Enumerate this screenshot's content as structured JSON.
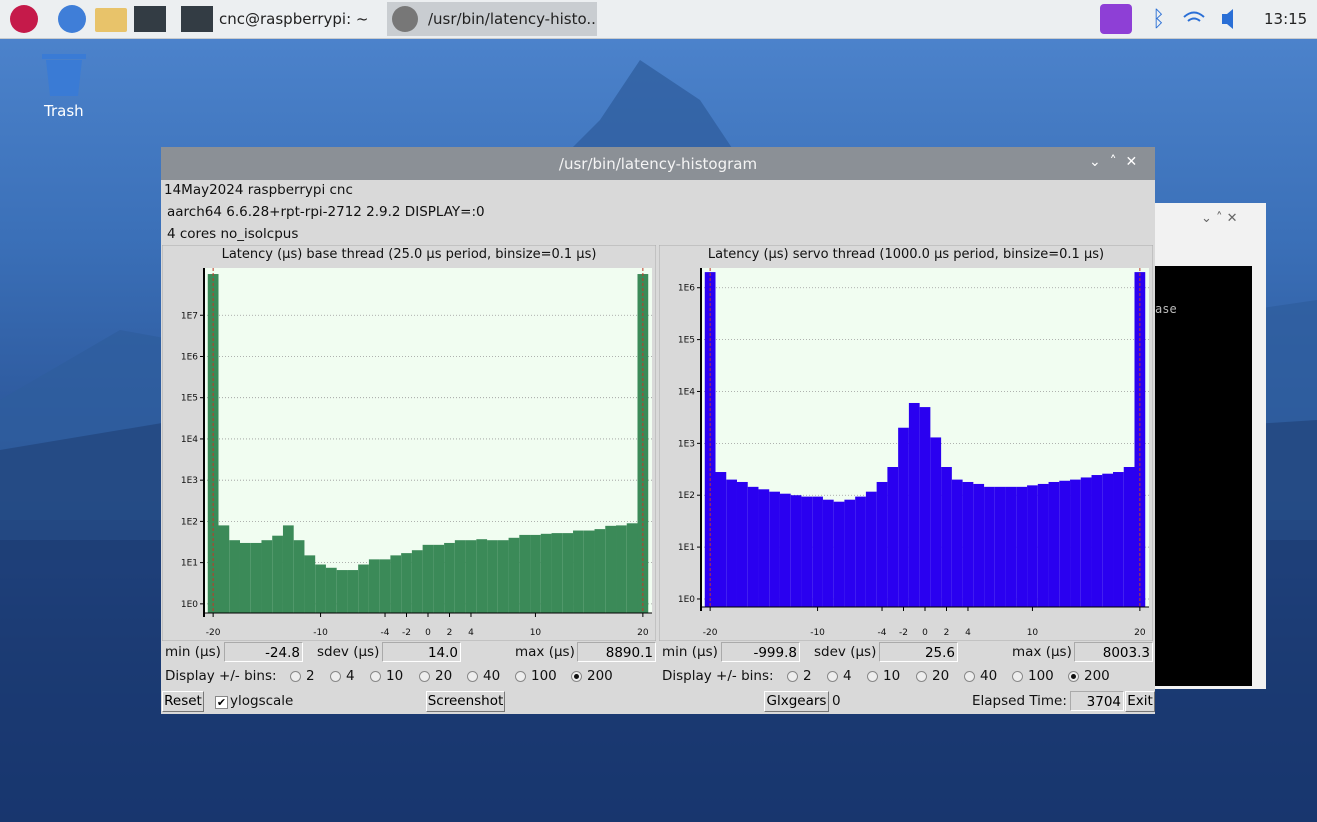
{
  "taskbar": {
    "apps": [
      {
        "label": "cnc@raspberrypi: ~"
      },
      {
        "label": "/usr/bin/latency-histo.."
      }
    ],
    "clock": "13:15"
  },
  "desktop": {
    "icons": [
      {
        "label": "Trash"
      }
    ]
  },
  "background_window": {
    "text": "ase"
  },
  "window": {
    "title": "/usr/bin/latency-histogram",
    "info": [
      "14May2024 raspberrypi cnc",
      "aarch64  6.6.28+rpt-rpi-2712  2.9.2  DISPLAY=:0",
      "4 cores  no_isolcpus"
    ],
    "panels": [
      {
        "min_label": "min (µs)",
        "min": "-24.8",
        "sdev_label": "sdev (µs)",
        "sdev": "14.0",
        "max_label": "max (µs)",
        "max": "8890.1",
        "bins_label": "Display +/- bins:",
        "bin_options": [
          "2",
          "4",
          "10",
          "20",
          "40",
          "100",
          "200"
        ],
        "selected_bin_index": 6
      },
      {
        "min_label": "min (µs)",
        "min": "-999.8",
        "sdev_label": "sdev (µs)",
        "sdev": "25.6",
        "max_label": "max (µs)",
        "max": "8003.3",
        "bins_label": "Display +/- bins:",
        "bin_options": [
          "2",
          "4",
          "10",
          "20",
          "40",
          "100",
          "200"
        ],
        "selected_bin_index": 6
      }
    ],
    "controls": {
      "reset": "Reset",
      "ylogscale": "ylogscale",
      "ylogscale_checked": true,
      "screenshot": "Screenshot",
      "glxgears": "Glxgears",
      "glxgears_count": "0",
      "elapsed_label": "Elapsed Time:",
      "elapsed": "3704",
      "exit": "Exit"
    }
  },
  "chart_data": [
    {
      "type": "histogram",
      "title": "Latency (µs) base thread (25.0 µs period, binsize=0.1 µs)",
      "color": "#3b8a58",
      "bins": [
        -20.5,
        -19.5,
        -18.5,
        -17.5,
        -16.5,
        -15.5,
        -14.5,
        -13.5,
        -12.5,
        -11.5,
        -10.5,
        -9.5,
        -8.5,
        -7.5,
        -6.5,
        -5.5,
        -4.5,
        -3.5,
        -2.5,
        -1.5,
        -0.5,
        0.5,
        1.5,
        2.5,
        3.5,
        4.5,
        5.5,
        6.5,
        7.5,
        8.5,
        9.5,
        10.5,
        11.5,
        12.5,
        13.5,
        14.5,
        15.5,
        16.5,
        17.5,
        18.5,
        19.5,
        20.5
      ],
      "values": [
        100000000,
        80,
        35,
        30,
        30,
        35,
        45,
        80,
        35,
        15,
        9,
        7.5,
        6.6,
        6.6,
        9,
        12,
        12,
        15,
        17,
        20,
        27,
        27,
        30,
        35,
        35,
        37,
        35,
        35,
        40,
        47,
        47,
        50,
        52,
        52,
        60,
        60,
        65,
        78,
        80,
        90,
        100000000
      ],
      "xlim": [
        -20.85,
        20.85
      ],
      "xticks": [
        -20,
        -10,
        -4,
        -2,
        0,
        2,
        4,
        10,
        20
      ],
      "ylim": [
        0.6,
        140000000
      ],
      "log_y": true,
      "grid": true,
      "yticks": [
        {
          "value": 1,
          "label": "1E0"
        },
        {
          "value": 10,
          "label": "1E1"
        },
        {
          "value": 100,
          "label": "1E2"
        },
        {
          "value": 1000,
          "label": "1E3"
        },
        {
          "value": 10000,
          "label": "1E4"
        },
        {
          "value": 100000,
          "label": "1E5"
        },
        {
          "value": 1000000,
          "label": "1E6"
        },
        {
          "value": 10000000,
          "label": "1E7"
        }
      ]
    },
    {
      "type": "histogram",
      "title": "Latency (µs) servo thread (1000.0 µs period, binsize=0.1 µs)",
      "color": "#2a00f0",
      "bins": [
        -20.5,
        -19.5,
        -18.5,
        -17.5,
        -16.5,
        -15.5,
        -14.5,
        -13.5,
        -12.5,
        -11.5,
        -10.5,
        -9.5,
        -8.5,
        -7.5,
        -6.5,
        -5.5,
        -4.5,
        -3.5,
        -2.5,
        -1.5,
        -0.5,
        0.5,
        1.5,
        2.5,
        3.5,
        4.5,
        5.5,
        6.5,
        7.5,
        8.5,
        9.5,
        10.5,
        11.5,
        12.5,
        13.5,
        14.5,
        15.5,
        16.5,
        17.5,
        18.5,
        19.5,
        20.5
      ],
      "values": [
        2000000,
        280,
        200,
        180,
        145,
        130,
        117,
        107,
        100,
        94,
        94,
        82,
        75,
        82,
        94,
        117,
        180,
        350,
        2000,
        6000,
        5000,
        1300,
        350,
        200,
        180,
        165,
        145,
        145,
        145,
        145,
        155,
        165,
        180,
        190,
        200,
        220,
        245,
        260,
        280,
        350,
        2000000
      ],
      "xlim": [
        -20.85,
        20.85
      ],
      "xticks": [
        -20,
        -10,
        -4,
        -2,
        0,
        2,
        4,
        10,
        20
      ],
      "ylim": [
        0.7,
        2400000
      ],
      "log_y": true,
      "grid": true,
      "yticks": [
        {
          "value": 1,
          "label": "1E0"
        },
        {
          "value": 10,
          "label": "1E1"
        },
        {
          "value": 100,
          "label": "1E2"
        },
        {
          "value": 1000,
          "label": "1E3"
        },
        {
          "value": 10000,
          "label": "1E4"
        },
        {
          "value": 100000,
          "label": "1E5"
        },
        {
          "value": 1000000,
          "label": "1E6"
        }
      ]
    }
  ]
}
